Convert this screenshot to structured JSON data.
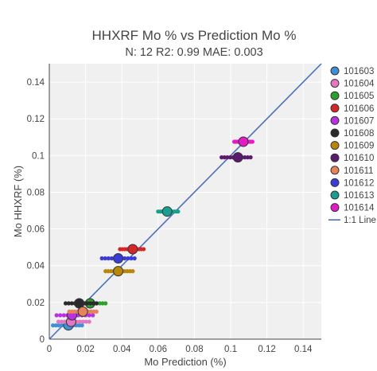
{
  "chart_data": {
    "type": "scatter",
    "title": "HHXRF Mo % vs Prediction Mo %",
    "subtitle": "N: 12 R2: 0.99 MAE: 0.003",
    "xlabel": "Mo Prediction (%)",
    "ylabel": "Mo HHXRF (%)",
    "xlim": [
      0,
      0.15
    ],
    "ylim": [
      0,
      0.15
    ],
    "xticks": [
      "0",
      "0.02",
      "0.04",
      "0.06",
      "0.08",
      "0.1",
      "0.12",
      "0.14"
    ],
    "yticks": [
      "0",
      "0.02",
      "0.04",
      "0.06",
      "0.08",
      "0.1",
      "0.12",
      "0.14"
    ],
    "grid": true,
    "legend_position": "right",
    "identity_line_label": "1:1 Line",
    "identity_line_color": "#4a6fbd",
    "series": [
      {
        "name": "101603",
        "color": "#3d8fd6",
        "mean": [
          0.0105,
          0.0075
        ],
        "spread_x": [
          0.002,
          0.018
        ]
      },
      {
        "name": "101604",
        "color": "#e377c2",
        "mean": [
          0.012,
          0.0095
        ],
        "spread_x": [
          0.005,
          0.022
        ]
      },
      {
        "name": "101605",
        "color": "#2ca02c",
        "mean": [
          0.0225,
          0.0195
        ],
        "spread_x": [
          0.015,
          0.031
        ]
      },
      {
        "name": "101606",
        "color": "#d62728",
        "mean": [
          0.046,
          0.049
        ],
        "spread_x": [
          0.039,
          0.052
        ]
      },
      {
        "name": "101607",
        "color": "#b832e0",
        "mean": [
          0.0125,
          0.013
        ],
        "spread_x": [
          0.004,
          0.024
        ]
      },
      {
        "name": "101608",
        "color": "#2b2b2b",
        "mean": [
          0.0165,
          0.0195
        ],
        "spread_x": [
          0.009,
          0.026
        ]
      },
      {
        "name": "101609",
        "color": "#b8860b",
        "mean": [
          0.038,
          0.037
        ],
        "spread_x": [
          0.031,
          0.046
        ]
      },
      {
        "name": "101610",
        "color": "#5a1a6e",
        "mean": [
          0.104,
          0.099
        ],
        "spread_x": [
          0.095,
          0.111
        ]
      },
      {
        "name": "101611",
        "color": "#e8825a",
        "mean": [
          0.0185,
          0.015
        ],
        "spread_x": [
          0.011,
          0.026
        ]
      },
      {
        "name": "101612",
        "color": "#3b3bd6",
        "mean": [
          0.038,
          0.044
        ],
        "spread_x": [
          0.029,
          0.047
        ]
      },
      {
        "name": "101613",
        "color": "#17a08f",
        "mean": [
          0.065,
          0.0695
        ],
        "spread_x": [
          0.06,
          0.071
        ]
      },
      {
        "name": "101614",
        "color": "#e619c7",
        "mean": [
          0.107,
          0.1075
        ],
        "spread_x": [
          0.102,
          0.112
        ]
      }
    ]
  }
}
